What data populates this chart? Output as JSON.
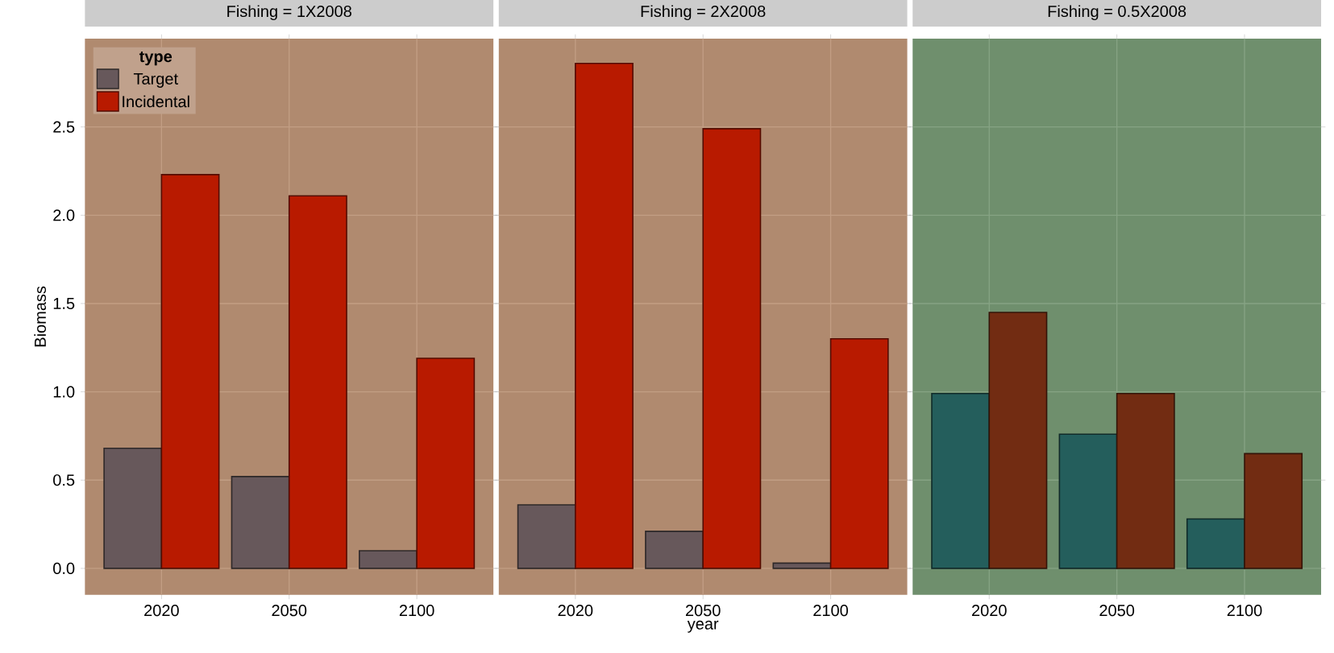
{
  "chart_data": [
    {
      "type": "bar",
      "title": "Fishing = 1X2008",
      "ylabel": "Biomass",
      "legend_title": "type",
      "legend": "top left",
      "grid": true,
      "categories": [
        "2020",
        "2050",
        "2100"
      ],
      "ylim": [
        -0.15,
        3.0
      ],
      "yticks": [
        {
          "value": 0,
          "label": "0.0"
        },
        0.5,
        {
          "value": 1,
          "label": "1.0"
        },
        1.5,
        {
          "value": 2,
          "label": "2.0"
        },
        2.5
      ],
      "series": [
        {
          "name": "Target",
          "color": "#67585b",
          "values": [
            0.68,
            0.52,
            0.1
          ]
        },
        {
          "name": "Incidental",
          "color": "#b81a00",
          "values": [
            2.23,
            2.11,
            1.19
          ]
        }
      ]
    },
    {
      "type": "bar",
      "title": "Fishing = 2X2008",
      "xlabel": "year",
      "grid": true,
      "tick_labels": "x",
      "categories": [
        "2020",
        "2050",
        "2100"
      ],
      "ylim": [
        -0.15,
        3.0
      ],
      "yticks": [
        0,
        0.5,
        1,
        1.5,
        2,
        2.5
      ],
      "series": [
        {
          "color": "#67585b",
          "values": [
            0.36,
            0.21,
            0.03
          ]
        },
        {
          "color": "#b81a00",
          "values": [
            2.86,
            2.49,
            1.3
          ]
        }
      ]
    },
    {
      "type": "bar",
      "title": "Fishing = 0.5X2008",
      "grid": true,
      "tick_labels": "x",
      "categories": [
        "2020",
        "2050",
        "2100"
      ],
      "ylim": [
        -0.15,
        3.0
      ],
      "yticks": [
        0,
        0.5,
        1,
        1.5,
        2,
        2.5
      ],
      "series": [
        {
          "color": "#245e5c",
          "values": [
            0.99,
            0.76,
            0.28
          ]
        },
        {
          "color": "#722c12",
          "values": [
            1.45,
            0.99,
            0.65
          ]
        }
      ]
    }
  ]
}
